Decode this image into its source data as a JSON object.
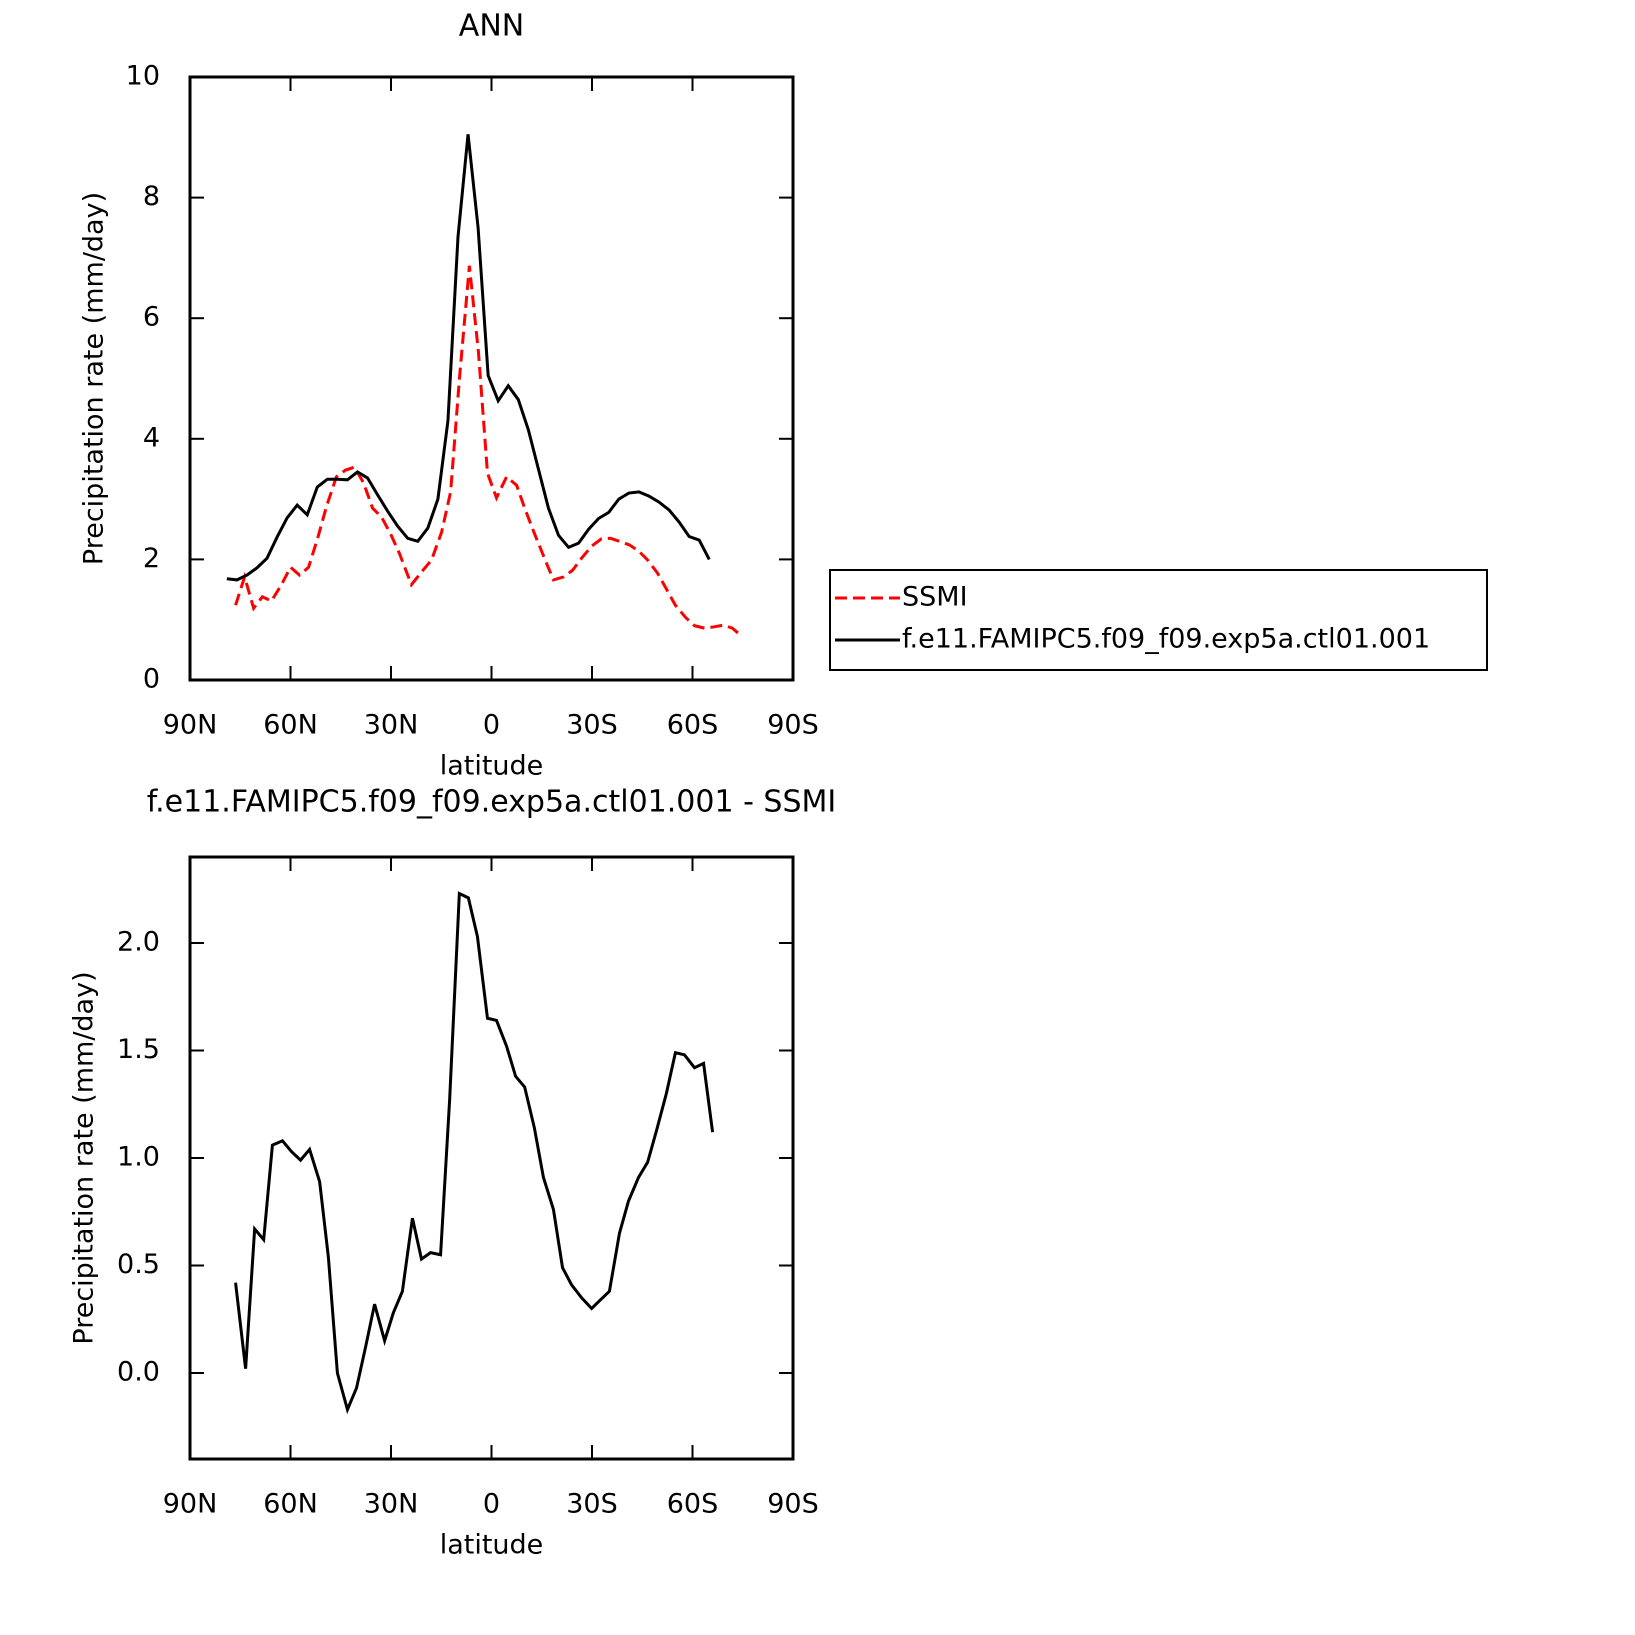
{
  "chart_data": [
    {
      "type": "line",
      "title": "ANN",
      "xlabel": "latitude",
      "ylabel": "Precipitation rate (mm/day)",
      "xlim": [
        90,
        -90
      ],
      "xticks": [
        {
          "value": 90,
          "label": "90N"
        },
        {
          "value": 60,
          "label": "60N"
        },
        {
          "value": 30,
          "label": "30N"
        },
        0,
        {
          "value": -30,
          "label": "30S"
        },
        {
          "value": -60,
          "label": "60S"
        },
        {
          "value": -90,
          "label": "90S"
        }
      ],
      "ylim": [
        0,
        10
      ],
      "yticks": [
        0,
        2,
        4,
        6,
        8,
        10
      ],
      "legend": "right",
      "series": [
        {
          "name": "SSMI",
          "color": "#ff0000",
          "dashed": true,
          "x": [
            76.4,
            73.7,
            71,
            68.4,
            65.7,
            62.7,
            60,
            57.3,
            54.6,
            51.9,
            49.3,
            46.3,
            43.6,
            40.9,
            38.2,
            35.5,
            32.8,
            30.1,
            27.5,
            23.9,
            20.9,
            17.9,
            14.9,
            12.2,
            9.6,
            6.6,
            3.9,
            1.2,
            -1.5,
            -4.5,
            -7.5,
            -10.1,
            -13.1,
            -15.8,
            -18.5,
            -21.5,
            -24.2,
            -26.9,
            -29.9,
            -32.8,
            -35.5,
            -38.2,
            -41.2,
            -43.9,
            -46.6,
            -49.6,
            -52.2,
            -54.9,
            -57.9,
            -60.6,
            -63.6,
            -66.3,
            -69.3,
            -71.9,
            -74.6
          ],
          "values": [
            1.24,
            1.71,
            1.19,
            1.38,
            1.31,
            1.58,
            1.87,
            1.74,
            1.87,
            2.35,
            2.87,
            3.37,
            3.48,
            3.53,
            3.27,
            2.85,
            2.7,
            2.42,
            2.1,
            1.58,
            1.79,
            1.99,
            2.45,
            3.12,
            4.98,
            6.87,
            5.44,
            3.43,
            3.02,
            3.37,
            3.23,
            2.82,
            2.39,
            2.02,
            1.66,
            1.71,
            1.82,
            2.02,
            2.22,
            2.34,
            2.35,
            2.3,
            2.24,
            2.14,
            1.99,
            1.77,
            1.51,
            1.24,
            1.04,
            0.9,
            0.86,
            0.88,
            0.91,
            0.86,
            0.73
          ]
        },
        {
          "name": "f.e11.FAMIPC5.f09_f09.exp5a.ctl01.001",
          "color": "#000000",
          "dashed": false,
          "x": [
            79,
            76,
            73,
            70,
            67,
            64,
            61,
            58,
            55,
            52,
            49,
            46,
            43,
            40,
            37,
            34,
            31,
            28,
            25,
            22,
            19,
            16,
            13,
            10,
            7,
            4,
            1,
            -2,
            -5,
            -8,
            -11,
            -14,
            -17,
            -20,
            -23,
            -26,
            -29,
            -32,
            -35,
            -38,
            -41,
            -44,
            -47,
            -50,
            -53,
            -56,
            -59,
            -62,
            -65
          ],
          "values": [
            1.68,
            1.66,
            1.74,
            1.86,
            2.02,
            2.37,
            2.69,
            2.9,
            2.74,
            3.2,
            3.33,
            3.33,
            3.32,
            3.45,
            3.35,
            3.07,
            2.8,
            2.55,
            2.35,
            2.3,
            2.52,
            3.0,
            4.3,
            7.35,
            9.05,
            7.5,
            5.05,
            4.63,
            4.88,
            4.65,
            4.15,
            3.5,
            2.85,
            2.4,
            2.2,
            2.27,
            2.5,
            2.68,
            2.78,
            3.0,
            3.1,
            3.12,
            3.05,
            2.95,
            2.82,
            2.62,
            2.38,
            2.32,
            2.0
          ]
        }
      ]
    },
    {
      "type": "line",
      "title": "f.e11.FAMIPC5.f09_f09.exp5a.ctl01.001 - SSMI",
      "xlabel": "latitude",
      "ylabel": "Precipitation rate (mm/day)",
      "xlim": [
        90,
        -90
      ],
      "xticks": [
        {
          "value": 90,
          "label": "90N"
        },
        {
          "value": 60,
          "label": "60N"
        },
        {
          "value": 30,
          "label": "30N"
        },
        0,
        {
          "value": -30,
          "label": "30S"
        },
        {
          "value": -60,
          "label": "60S"
        },
        {
          "value": -90,
          "label": "90S"
        }
      ],
      "ylim": [
        -0.4,
        2.4
      ],
      "yticks": [
        {
          "value": 0,
          "label": "0.0"
        },
        0.5,
        {
          "value": 1,
          "label": "1.0"
        },
        1.5,
        {
          "value": 2,
          "label": "2.0"
        }
      ],
      "series": [
        {
          "color": "#000000",
          "dashed": false,
          "x": [
            76.4,
            73.4,
            70.7,
            68,
            65.4,
            62.4,
            59.7,
            57,
            54.3,
            51.3,
            48.7,
            46,
            43,
            40.3,
            37.6,
            34.9,
            31.9,
            29.3,
            26.6,
            23.6,
            20.9,
            18.2,
            15.2,
            12.5,
            9.6,
            6.9,
            4.2,
            1.2,
            -1.5,
            -4.5,
            -7.2,
            -9.9,
            -12.8,
            -15.5,
            -18.5,
            -21.2,
            -23.9,
            -26.9,
            -29.9,
            -32.5,
            -35.2,
            -38.2,
            -40.9,
            -43.9,
            -46.6,
            -49.3,
            -52.2,
            -54.9,
            -57.6,
            -60.6,
            -63.3,
            -66
          ],
          "values": [
            0.42,
            0.02,
            0.67,
            0.62,
            1.06,
            1.08,
            1.03,
            0.99,
            1.04,
            0.89,
            0.54,
            0.0,
            -0.17,
            -0.07,
            0.12,
            0.32,
            0.15,
            0.28,
            0.38,
            0.72,
            0.53,
            0.56,
            0.55,
            1.27,
            2.23,
            2.21,
            2.03,
            1.65,
            1.64,
            1.52,
            1.38,
            1.33,
            1.14,
            0.91,
            0.76,
            0.49,
            0.41,
            0.35,
            0.3,
            0.34,
            0.38,
            0.65,
            0.8,
            0.91,
            0.98,
            1.13,
            1.3,
            1.49,
            1.48,
            1.42,
            1.44,
            1.12
          ]
        }
      ]
    }
  ]
}
